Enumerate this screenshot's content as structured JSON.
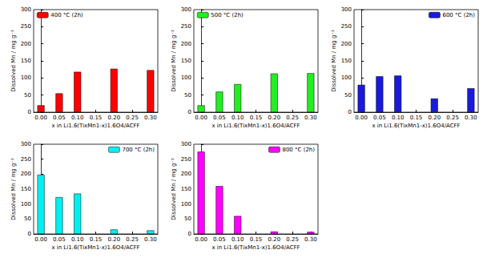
{
  "chart_data": [
    {
      "type": "bar",
      "legend": "upper left",
      "grid": false,
      "xlabel": "x in Li1.6(TixMn1-x)1.6O4/ACFF",
      "ylabel": "Dissolved Mn / mg g⁻¹",
      "x": [
        0,
        0.05,
        0.1,
        0.2,
        0.3
      ],
      "xlim": [
        -0.02,
        0.32
      ],
      "xticks": [
        {
          "value": 0,
          "label": "0.00"
        },
        {
          "value": 0.05,
          "label": "0.05"
        },
        {
          "value": 0.1,
          "label": "0.10"
        },
        {
          "value": 0.15,
          "label": "0.15"
        },
        {
          "value": 0.2,
          "label": "0.20"
        },
        {
          "value": 0.25,
          "label": "0.25"
        },
        {
          "value": 0.3,
          "label": "0.30"
        }
      ],
      "ylim": [
        0,
        300
      ],
      "yticks": [
        0,
        50,
        100,
        150,
        200,
        250,
        300
      ],
      "series": [
        {
          "name": "400 °C (2h)",
          "color": "#ff0000",
          "values": [
            20,
            55,
            118,
            127,
            123
          ]
        }
      ]
    },
    {
      "type": "bar",
      "legend": "upper left",
      "grid": false,
      "xlabel": "x in Li1.6(TixMn1-x)1.6O4/ACFF",
      "ylabel": "Dissolved Mn / mg g⁻¹",
      "x": [
        0,
        0.05,
        0.1,
        0.2,
        0.3
      ],
      "xlim": [
        -0.02,
        0.32
      ],
      "xticks": [
        {
          "value": 0,
          "label": "0.00"
        },
        {
          "value": 0.05,
          "label": "0.05"
        },
        {
          "value": 0.1,
          "label": "0.10"
        },
        {
          "value": 0.15,
          "label": "0.15"
        },
        {
          "value": 0.2,
          "label": "0.20"
        },
        {
          "value": 0.25,
          "label": "0.25"
        },
        {
          "value": 0.3,
          "label": "0.30"
        }
      ],
      "ylim": [
        0,
        300
      ],
      "yticks": [
        0,
        50,
        100,
        150,
        200,
        250,
        300
      ],
      "series": [
        {
          "name": "500 °C (2h)",
          "color": "#22ee22",
          "values": [
            20,
            60,
            82,
            113,
            114
          ]
        }
      ]
    },
    {
      "type": "bar",
      "legend": "upper right",
      "grid": false,
      "xlabel": "x in Li1.6(TixMn1-x)1.6O4/ACFF",
      "ylabel": "Dissolved Mn / mg g⁻¹",
      "x": [
        0,
        0.05,
        0.1,
        0.2,
        0.3
      ],
      "xlim": [
        -0.02,
        0.32
      ],
      "xticks": [
        {
          "value": 0,
          "label": "0.00"
        },
        {
          "value": 0.05,
          "label": "0.05"
        },
        {
          "value": 0.1,
          "label": "0.10"
        },
        {
          "value": 0.15,
          "label": "0.15"
        },
        {
          "value": 0.2,
          "label": "0.20"
        },
        {
          "value": 0.25,
          "label": "0.25"
        },
        {
          "value": 0.3,
          "label": "0.30"
        }
      ],
      "ylim": [
        0,
        300
      ],
      "yticks": [
        0,
        50,
        100,
        150,
        200,
        250,
        300
      ],
      "series": [
        {
          "name": "600 °C (2h)",
          "color": "#1a1add",
          "values": [
            80,
            105,
            107,
            40,
            70
          ]
        }
      ]
    },
    {
      "type": "bar",
      "legend": "upper right",
      "grid": false,
      "xlabel": "x in Li1.6(TixMn1-x)1.6O4/ACFF",
      "ylabel": "Dissolved Mn / mg g⁻¹",
      "x": [
        0,
        0.05,
        0.1,
        0.2,
        0.3
      ],
      "xlim": [
        -0.02,
        0.32
      ],
      "xticks": [
        {
          "value": 0,
          "label": "0.00"
        },
        {
          "value": 0.05,
          "label": "0.05"
        },
        {
          "value": 0.1,
          "label": "0.10"
        },
        {
          "value": 0.15,
          "label": "0.15"
        },
        {
          "value": 0.2,
          "label": "0.20"
        },
        {
          "value": 0.25,
          "label": "0.25"
        },
        {
          "value": 0.3,
          "label": "0.30"
        }
      ],
      "ylim": [
        0,
        300
      ],
      "yticks": [
        0,
        50,
        100,
        150,
        200,
        250,
        300
      ],
      "series": [
        {
          "name": "700 °C (2h)",
          "color": "#00f0f0",
          "values": [
            198,
            123,
            135,
            15,
            12
          ]
        }
      ]
    },
    {
      "type": "bar",
      "legend": "upper right",
      "grid": false,
      "xlabel": "x in Li1.6(TixMn1-x)1.6O4/ACFF",
      "ylabel": "Dissolved Mn / mg g⁻¹",
      "x": [
        0,
        0.05,
        0.1,
        0.2,
        0.3
      ],
      "xlim": [
        -0.02,
        0.32
      ],
      "xticks": [
        {
          "value": 0,
          "label": "0.00"
        },
        {
          "value": 0.05,
          "label": "0.05"
        },
        {
          "value": 0.1,
          "label": "0.10"
        },
        {
          "value": 0.15,
          "label": "0.15"
        },
        {
          "value": 0.2,
          "label": "0.20"
        },
        {
          "value": 0.25,
          "label": "0.25"
        },
        {
          "value": 0.3,
          "label": "0.30"
        }
      ],
      "ylim": [
        0,
        300
      ],
      "yticks": [
        0,
        50,
        100,
        150,
        200,
        250,
        300
      ],
      "series": [
        {
          "name": "800 °C (2h)",
          "color": "#ff00ff",
          "values": [
            275,
            160,
            60,
            8,
            7
          ]
        }
      ]
    }
  ]
}
